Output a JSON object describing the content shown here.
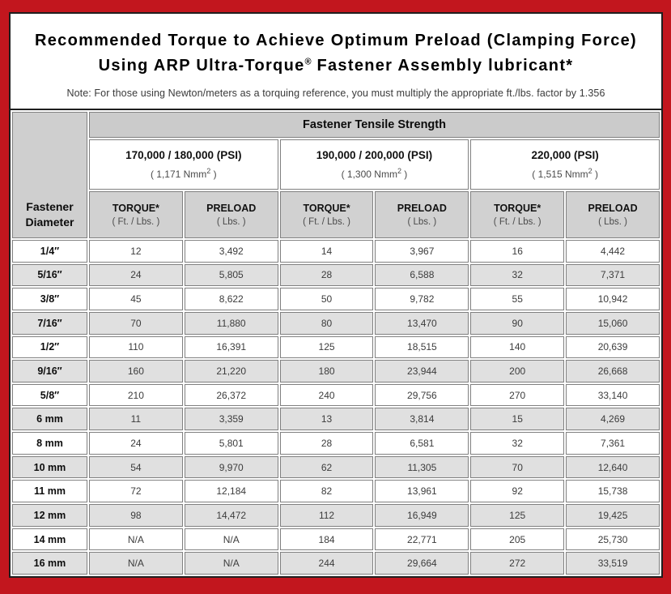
{
  "title": {
    "line1": "Recommended Torque to Achieve Optimum Preload (Clamping Force)",
    "line2_prefix": "Using ARP Ultra-Torque",
    "line2_trademark": "®",
    "line2_suffix": " Fastener Assembly lubricant*",
    "note": "Note: For those using Newton/meters as a torquing reference, you must multiply the appropriate ft./lbs. factor by 1.356"
  },
  "colors": {
    "frame_red": "#C2161E",
    "panel_border_black": "#1e1e1e",
    "header_gray": "#CFCFCF",
    "alt_row_gray": "#E0E0E0",
    "cell_border_gray": "#808080"
  },
  "table": {
    "corner_header": "Fastener Diameter",
    "group_header": "Fastener Tensile Strength",
    "strength_columns": [
      {
        "psi": "170,000 / 180,000 (PSI)",
        "nmm_open": "( 1,171 Nmm",
        "nmm_sup": "2",
        "nmm_close": " )"
      },
      {
        "psi": "190,000 / 200,000 (PSI)",
        "nmm_open": "( 1,300 Nmm",
        "nmm_sup": "2",
        "nmm_close": " )"
      },
      {
        "psi": "220,000 (PSI)",
        "nmm_open": "( 1,515 Nmm",
        "nmm_sup": "2",
        "nmm_close": " )"
      }
    ],
    "unit_headers": [
      {
        "label": "TORQUE*",
        "unit": "( Ft. / Lbs. )"
      },
      {
        "label": "PRELOAD",
        "unit": "( Lbs. )"
      }
    ],
    "rows": [
      {
        "diameter": "1/4″",
        "values": [
          "12",
          "3,492",
          "14",
          "3,967",
          "16",
          "4,442"
        ]
      },
      {
        "diameter": "5/16″",
        "values": [
          "24",
          "5,805",
          "28",
          "6,588",
          "32",
          "7,371"
        ]
      },
      {
        "diameter": "3/8″",
        "values": [
          "45",
          "8,622",
          "50",
          "9,782",
          "55",
          "10,942"
        ]
      },
      {
        "diameter": "7/16″",
        "values": [
          "70",
          "11,880",
          "80",
          "13,470",
          "90",
          "15,060"
        ]
      },
      {
        "diameter": "1/2″",
        "values": [
          "110",
          "16,391",
          "125",
          "18,515",
          "140",
          "20,639"
        ]
      },
      {
        "diameter": "9/16″",
        "values": [
          "160",
          "21,220",
          "180",
          "23,944",
          "200",
          "26,668"
        ]
      },
      {
        "diameter": "5/8″",
        "values": [
          "210",
          "26,372",
          "240",
          "29,756",
          "270",
          "33,140"
        ]
      },
      {
        "diameter": "6 mm",
        "values": [
          "11",
          "3,359",
          "13",
          "3,814",
          "15",
          "4,269"
        ]
      },
      {
        "diameter": "8 mm",
        "values": [
          "24",
          "5,801",
          "28",
          "6,581",
          "32",
          "7,361"
        ]
      },
      {
        "diameter": "10 mm",
        "values": [
          "54",
          "9,970",
          "62",
          "11,305",
          "70",
          "12,640"
        ]
      },
      {
        "diameter": "11 mm",
        "values": [
          "72",
          "12,184",
          "82",
          "13,961",
          "92",
          "15,738"
        ]
      },
      {
        "diameter": "12 mm",
        "values": [
          "98",
          "14,472",
          "112",
          "16,949",
          "125",
          "19,425"
        ]
      },
      {
        "diameter": "14 mm",
        "values": [
          "N/A",
          "N/A",
          "184",
          "22,771",
          "205",
          "25,730"
        ]
      },
      {
        "diameter": "16 mm",
        "values": [
          "N/A",
          "N/A",
          "244",
          "29,664",
          "272",
          "33,519"
        ]
      }
    ]
  }
}
